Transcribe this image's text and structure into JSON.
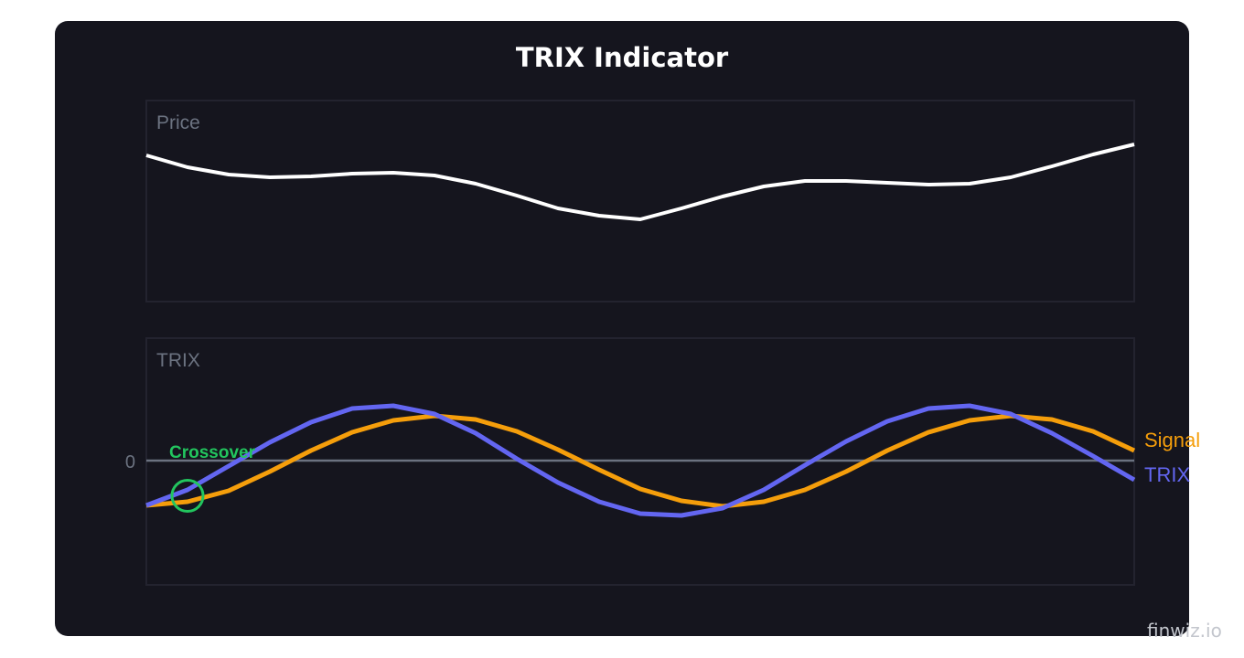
{
  "chart_data": [
    {
      "type": "line",
      "title": "TRIX Indicator",
      "panel_label": "Price",
      "x": [
        1,
        2,
        3,
        4,
        5,
        6,
        7,
        8,
        9,
        10,
        11,
        12,
        13,
        14,
        15,
        16,
        17,
        18,
        19,
        20,
        21,
        22,
        23,
        24,
        25
      ],
      "series": [
        {
          "values": [
            16.0,
            14.7,
            13.9,
            13.6,
            13.7,
            14.0,
            14.1,
            13.8,
            12.9,
            11.6,
            10.2,
            9.4,
            9.0,
            10.2,
            11.5,
            12.6,
            13.2,
            13.2,
            13.0,
            12.8,
            12.9,
            13.6,
            14.8,
            16.1,
            17.2
          ],
          "color": "#ffffff"
        }
      ],
      "ylim": [
        0,
        22
      ],
      "grid": false
    },
    {
      "type": "line",
      "panel_label": "TRIX",
      "x": [
        1,
        2,
        3,
        4,
        5,
        6,
        7,
        8,
        9,
        10,
        11,
        12,
        13,
        14,
        15,
        16,
        17,
        18,
        19,
        20,
        21,
        22,
        23,
        24,
        25
      ],
      "series": [
        {
          "name": "TRIX",
          "color": "#6366f1",
          "values": [
            -4.9,
            -3.2,
            -0.6,
            2.0,
            4.2,
            5.7,
            6.0,
            5.1,
            3.0,
            0.2,
            -2.4,
            -4.5,
            -5.8,
            -6.0,
            -5.2,
            -3.2,
            -0.5,
            2.1,
            4.3,
            5.7,
            6.0,
            5.1,
            3.0,
            0.5,
            -2.1
          ]
        },
        {
          "name": "Signal",
          "color": "#f59e0b",
          "values": [
            -4.9,
            -4.5,
            -3.3,
            -1.2,
            1.1,
            3.1,
            4.4,
            4.9,
            4.5,
            3.2,
            1.2,
            -1.0,
            -3.1,
            -4.4,
            -5.0,
            -4.5,
            -3.2,
            -1.2,
            1.1,
            3.1,
            4.4,
            4.9,
            4.5,
            3.2,
            1.1
          ]
        }
      ],
      "zero_line_label": "0",
      "zero_line_color": "#6b7280",
      "ylim": [
        -13.6,
        13.4
      ],
      "annotation": {
        "text": "Crossover",
        "x": 2,
        "color": "#22c55e"
      },
      "legend_placement": "right-end-of-lines",
      "grid": false
    }
  ],
  "watermark": "finwiz.io"
}
